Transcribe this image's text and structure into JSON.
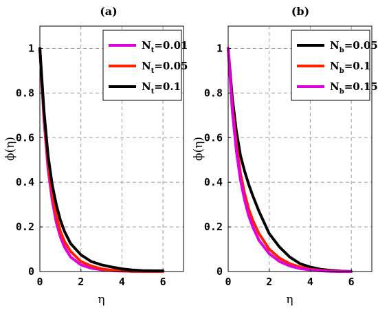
{
  "chart_data": [
    {
      "type": "line",
      "title": "(a)",
      "xlabel": "η",
      "ylabel": "ϕ(η)",
      "xlim": [
        0,
        7
      ],
      "ylim": [
        0,
        1.1
      ],
      "xticks": [
        0,
        2,
        4,
        6
      ],
      "yticks": [
        0,
        0.2,
        0.4,
        0.6,
        0.8,
        1
      ],
      "grid": true,
      "legend_position": "top-right",
      "series": [
        {
          "name": "N_t=0.01",
          "legend_main": "N",
          "legend_sub": "t",
          "legend_rest": "=0.01",
          "color": "#dd00dd",
          "x": [
            0,
            0.2,
            0.4,
            0.6,
            0.8,
            1.0,
            1.2,
            1.5,
            2.0,
            2.5,
            3.0,
            3.5,
            4.0,
            4.5,
            5.0,
            5.5,
            6.0
          ],
          "y": [
            1.0,
            0.68,
            0.46,
            0.32,
            0.22,
            0.155,
            0.11,
            0.065,
            0.03,
            0.015,
            0.008,
            0.004,
            0.002,
            0.001,
            0.0,
            0.0,
            0.0
          ]
        },
        {
          "name": "N_t=0.05",
          "legend_main": "N",
          "legend_sub": "t",
          "legend_rest": "=0.05",
          "color": "#ff2000",
          "x": [
            0,
            0.2,
            0.4,
            0.6,
            0.8,
            1.0,
            1.2,
            1.5,
            2.0,
            2.5,
            3.0,
            3.5,
            4.0,
            4.5,
            5.0,
            5.5,
            6.0
          ],
          "y": [
            1.0,
            0.7,
            0.49,
            0.35,
            0.25,
            0.18,
            0.135,
            0.09,
            0.045,
            0.025,
            0.012,
            0.006,
            0.003,
            0.001,
            0.0,
            0.0,
            0.0
          ]
        },
        {
          "name": "N_t=0.1",
          "legend_main": "N",
          "legend_sub": "t",
          "legend_rest": "=0.1",
          "color": "#000000",
          "x": [
            0,
            0.2,
            0.4,
            0.6,
            0.8,
            1.0,
            1.2,
            1.5,
            2.0,
            2.5,
            3.0,
            3.5,
            4.0,
            4.5,
            5.0,
            5.5,
            6.0
          ],
          "y": [
            1.0,
            0.72,
            0.52,
            0.39,
            0.3,
            0.23,
            0.18,
            0.125,
            0.075,
            0.045,
            0.03,
            0.02,
            0.012,
            0.007,
            0.004,
            0.003,
            0.003
          ]
        }
      ]
    },
    {
      "type": "line",
      "title": "(b)",
      "xlabel": "η",
      "ylabel": "ϕ(η)",
      "xlim": [
        0,
        7
      ],
      "ylim": [
        0,
        1.1
      ],
      "xticks": [
        0,
        2,
        4,
        6
      ],
      "yticks": [
        0,
        0.2,
        0.4,
        0.6,
        0.8,
        1
      ],
      "grid": true,
      "legend_position": "top-right",
      "series": [
        {
          "name": "N_b=0.05",
          "legend_main": "N",
          "legend_sub": "b",
          "legend_rest": "=0.05",
          "color": "#000000",
          "x": [
            0,
            0.2,
            0.4,
            0.6,
            0.8,
            1.0,
            1.2,
            1.5,
            2.0,
            2.5,
            3.0,
            3.5,
            4.0,
            4.5,
            5.0,
            5.5,
            6.0
          ],
          "y": [
            1.0,
            0.78,
            0.63,
            0.52,
            0.45,
            0.39,
            0.34,
            0.27,
            0.17,
            0.11,
            0.065,
            0.035,
            0.02,
            0.01,
            0.005,
            0.002,
            0.0
          ]
        },
        {
          "name": "N_b=0.1",
          "legend_main": "N",
          "legend_sub": "b",
          "legend_rest": "=0.1",
          "color": "#ff2000",
          "x": [
            0,
            0.2,
            0.4,
            0.6,
            0.8,
            1.0,
            1.2,
            1.5,
            2.0,
            2.5,
            3.0,
            3.5,
            4.0,
            4.5,
            5.0,
            5.5,
            6.0
          ],
          "y": [
            1.0,
            0.74,
            0.57,
            0.44,
            0.35,
            0.28,
            0.23,
            0.17,
            0.1,
            0.06,
            0.035,
            0.02,
            0.01,
            0.005,
            0.002,
            0.001,
            0.0
          ]
        },
        {
          "name": "N_b=0.15",
          "legend_main": "N",
          "legend_sub": "b",
          "legend_rest": "=0.15",
          "color": "#dd00dd",
          "x": [
            0,
            0.2,
            0.4,
            0.6,
            0.8,
            1.0,
            1.2,
            1.5,
            2.0,
            2.5,
            3.0,
            3.5,
            4.0,
            4.5,
            5.0,
            5.5,
            6.0
          ],
          "y": [
            1.0,
            0.72,
            0.54,
            0.41,
            0.32,
            0.25,
            0.2,
            0.14,
            0.08,
            0.045,
            0.025,
            0.013,
            0.007,
            0.003,
            0.001,
            0.0,
            0.0
          ]
        }
      ]
    }
  ]
}
